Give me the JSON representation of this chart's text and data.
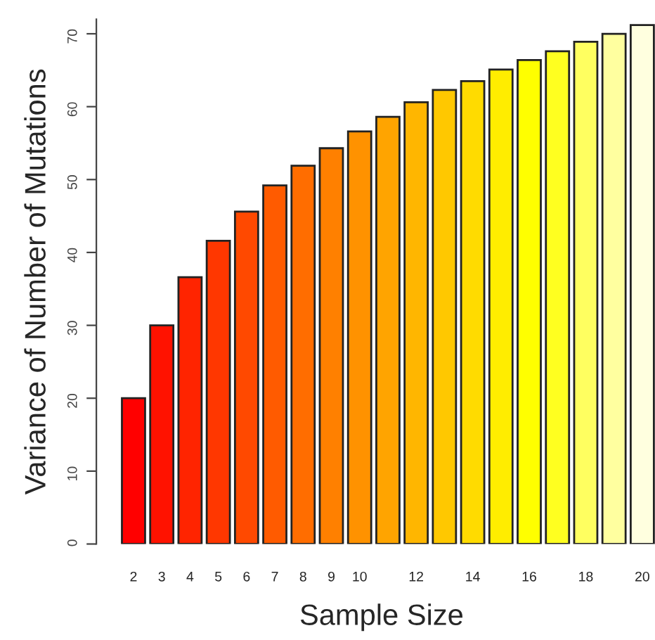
{
  "chart_data": {
    "type": "bar",
    "xlabel": "Sample Size",
    "ylabel": "Variance of Number of Mutations",
    "categories": [
      "2",
      "3",
      "4",
      "5",
      "6",
      "7",
      "8",
      "9",
      "10",
      null,
      "12",
      null,
      "14",
      null,
      "16",
      null,
      "18",
      null,
      "20"
    ],
    "values": [
      20.0,
      30.0,
      36.6,
      41.6,
      45.6,
      49.2,
      51.9,
      54.3,
      56.6,
      58.6,
      60.6,
      62.3,
      63.5,
      65.1,
      66.4,
      67.6,
      68.9,
      70.0,
      71.2
    ],
    "colors": [
      "#ff0000",
      "#ff1200",
      "#ff2400",
      "#ff3700",
      "#ff4900",
      "#ff5b00",
      "#ff6d00",
      "#ff8000",
      "#ff9200",
      "#ffa400",
      "#ffb600",
      "#ffc800",
      "#ffdb00",
      "#ffed00",
      "#ffff00",
      "#ffff20",
      "#ffff60",
      "#ffff9f",
      "#ffffdf"
    ],
    "ylim": [
      0,
      72
    ],
    "yticks": [
      0,
      10,
      20,
      30,
      40,
      50,
      60,
      70
    ],
    "grid": false
  }
}
